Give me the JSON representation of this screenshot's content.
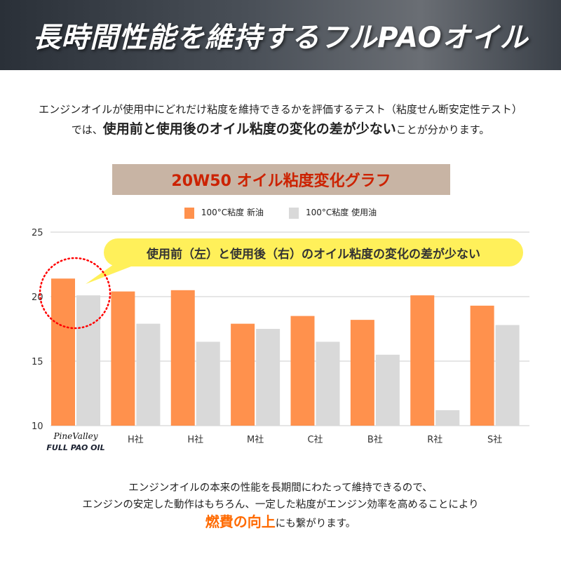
{
  "header": {
    "title": "長時間性能を維持するフルPAOオイル"
  },
  "intro": {
    "line1": "エンジンオイルが使用中にどれだけ粘度を維持できるかを評価するテスト（粘度せん断安定性テスト）",
    "line2_pre": "では、",
    "line2_bold": "使用前と使用後のオイル粘度の変化の差が少ない",
    "line2_post": "ことが分かります。"
  },
  "callout": "使用前（左）と使用後（右）のオイル粘度の変化の差が少ない",
  "colors": {
    "new_oil": "#ff914d",
    "used_oil": "#d9d9d9",
    "callout": "#fff05a",
    "title_bg": "#c8b4a4",
    "title_text": "#cc2200",
    "highlight_circle": "#ff0000"
  },
  "chart_data": {
    "type": "bar",
    "title": "20W50 オイル粘度変化グラフ",
    "categories": [
      "PineValley FULL PAO OIL",
      "H社",
      "H社",
      "M社",
      "C社",
      "B社",
      "R社",
      "S社"
    ],
    "series": [
      {
        "name": "100°C粘度 新油",
        "values": [
          21.4,
          20.4,
          20.5,
          17.9,
          18.5,
          18.2,
          20.1,
          19.3
        ]
      },
      {
        "name": "100°C粘度 使用油",
        "values": [
          20.1,
          17.9,
          16.5,
          17.5,
          16.5,
          15.5,
          11.2,
          17.8
        ]
      }
    ],
    "yticks": [
      10,
      15,
      20,
      25
    ],
    "ylim": [
      10,
      25
    ],
    "grid": true,
    "legend": "top"
  },
  "outro": {
    "line1": "エンジンオイルの本来の性能を長期間にわたって維持できるので、",
    "line2": "エンジンの安定した動作はもちろん、一定した粘度がエンジン効率を高めることにより",
    "line3_hl": "燃費の向上",
    "line3_post": "にも繋がります。"
  }
}
